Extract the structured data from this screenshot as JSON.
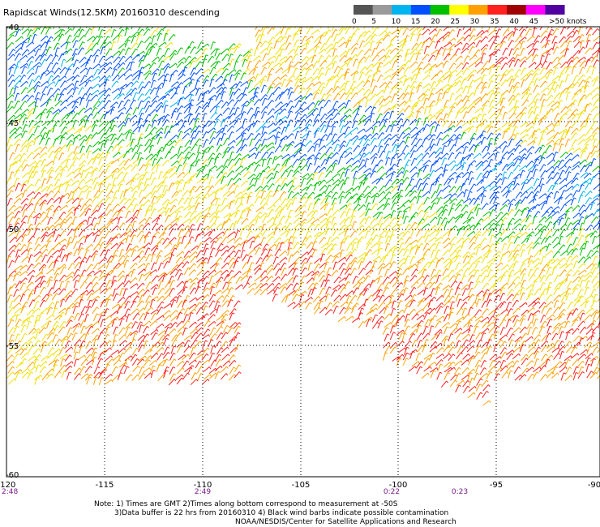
{
  "header": {
    "title": "Rapidscat Winds(12.5KM) 20160310 descending"
  },
  "legend": {
    "labels": [
      "0",
      "5",
      "10",
      "15",
      "20",
      "25",
      "30",
      "35",
      "40",
      "45",
      ">50 knots"
    ],
    "colors": [
      "#555555",
      "#9a9a9a",
      "#00b4f0",
      "#0050ff",
      "#00c000",
      "#ffff00",
      "#ffa000",
      "#ff2020",
      "#a00000",
      "#ff00ff",
      "#5000a0"
    ]
  },
  "map": {
    "lon_ticks": [
      "-120",
      "-115",
      "-110",
      "-105",
      "-100",
      "-95",
      "-90"
    ],
    "lat_ticks": [
      "-40",
      "-45",
      "-50",
      "-55",
      "-60"
    ],
    "times": [
      "2:48",
      "2:49",
      "0:22",
      "0:23"
    ]
  },
  "footer": {
    "note_line1": "Note: 1) Times are GMT 2)Times along bottom correspond to measurement at -50S",
    "note_line2": "3)Data buffer is 22 hrs from 20160310 4) Black wind barbs indicate possible contamination",
    "credit": "NOAA/NESDIS/Center for Satellite Applications and Research"
  }
}
